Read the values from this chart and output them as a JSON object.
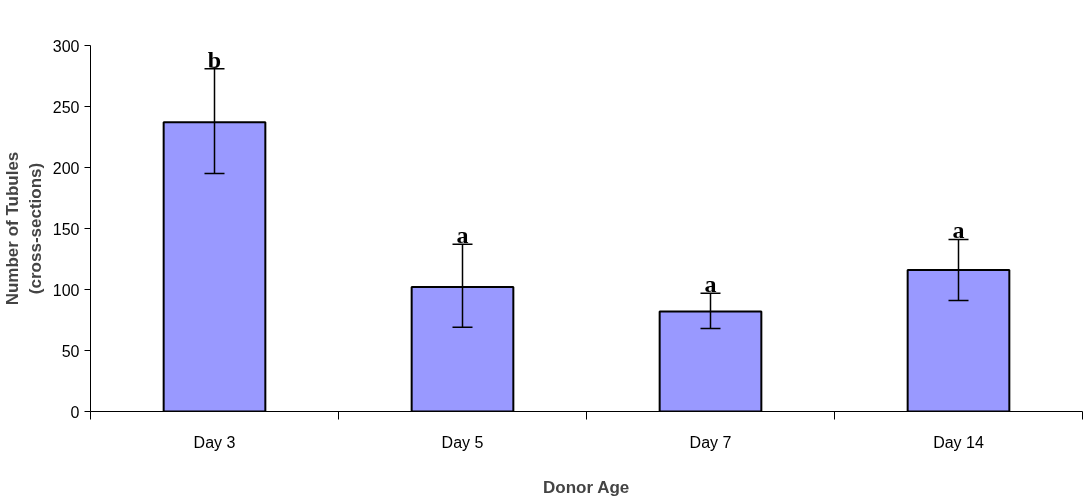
{
  "chart_data": {
    "type": "bar",
    "xlabel": "Donor Age",
    "ylabel": "Number of Tubules\n(cross-sections)",
    "categories": [
      "Day 3",
      "Day 5",
      "Day 7",
      "Day 14"
    ],
    "values": [
      237,
      102,
      82,
      116
    ],
    "errors": [
      [
        195,
        281
      ],
      [
        69,
        137
      ],
      [
        68,
        97
      ],
      [
        91,
        141
      ]
    ],
    "color": "#9999ff",
    "ylim": [
      0,
      300
    ],
    "yticks": [
      0,
      50,
      100,
      150,
      200,
      250,
      300
    ],
    "grid": false,
    "annotations": [
      "b",
      "a",
      "a",
      "a"
    ]
  }
}
